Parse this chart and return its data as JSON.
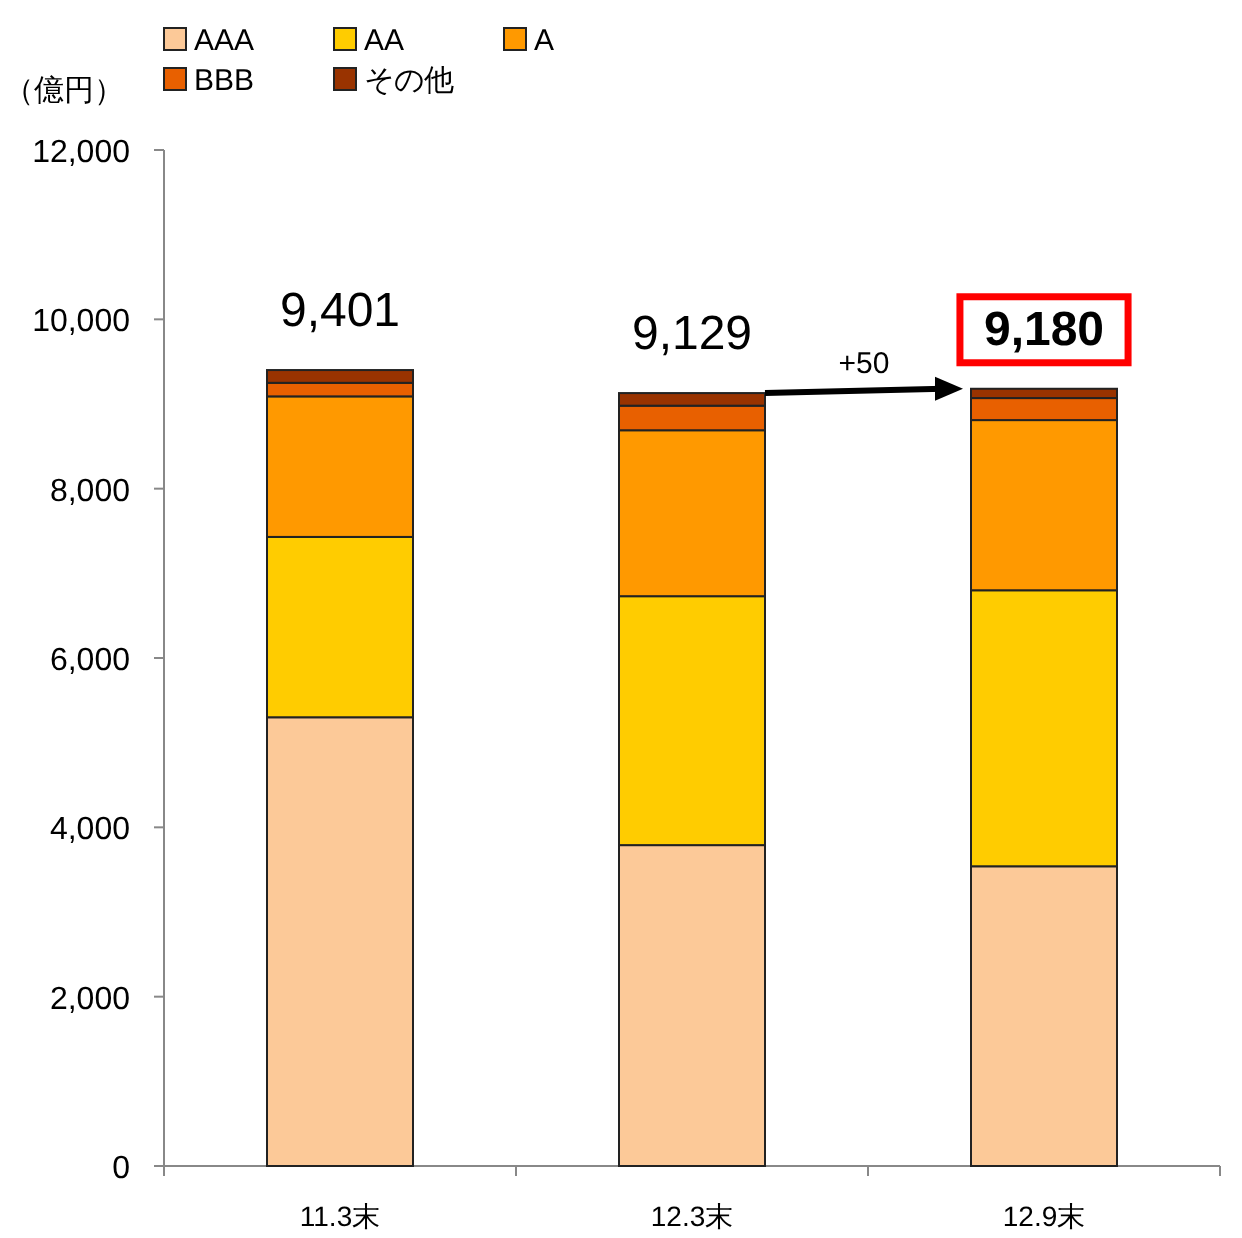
{
  "chart_data": {
    "type": "bar",
    "stacked": true,
    "ylabel": "（億円）",
    "categories": [
      "11.3末",
      "12.3末",
      "12.9末"
    ],
    "series": [
      {
        "name": "AAA",
        "color": "#fcc998",
        "values": [
          5300,
          3790,
          3540
        ]
      },
      {
        "name": "AA",
        "color": "#ffcc00",
        "values": [
          2130,
          2940,
          3260
        ]
      },
      {
        "name": "A",
        "color": "#ff9900",
        "values": [
          1660,
          1960,
          2010
        ]
      },
      {
        "name": "BBB",
        "color": "#e86000",
        "values": [
          160,
          290,
          260
        ]
      },
      {
        "name": "その他",
        "color": "#993300",
        "values": [
          151,
          149,
          110
        ]
      }
    ],
    "totals": [
      "9,401",
      "9,129",
      "9,180"
    ],
    "annotations": [
      "+50"
    ],
    "ylim": [
      0,
      12000
    ],
    "yticks": [
      {
        "value": 0,
        "label": "0"
      },
      {
        "value": 2000,
        "label": "2,000"
      },
      {
        "value": 4000,
        "label": "4,000"
      },
      {
        "value": 6000,
        "label": "6,000"
      },
      {
        "value": 8000,
        "label": "8,000"
      },
      {
        "value": 10000,
        "label": "10,000"
      },
      {
        "value": 12000,
        "label": "12,000"
      }
    ],
    "grid": false,
    "legend": "top left"
  }
}
